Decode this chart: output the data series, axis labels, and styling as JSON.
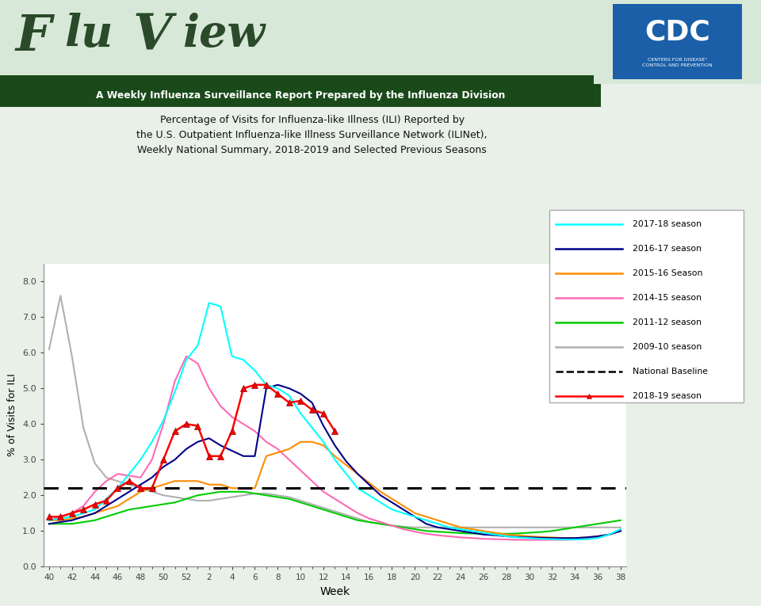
{
  "title_line1": "Percentage of Visits for Influenza-like Illness (ILI) Reported by",
  "title_line2": "the U.S. Outpatient Influenza-like Illness Surveillance Network (ILINet),",
  "title_line3": "Weekly National Summary, 2018-2019 and Selected Previous Seasons",
  "header_main": "FluView",
  "header_sub": "A Weekly Influenza Surveillance Report Prepared by the Influenza Division",
  "xlabel": "Week",
  "ylabel": "% of Visits for ILI",
  "ylim": [
    0.0,
    8.5
  ],
  "yticks": [
    0.0,
    1.0,
    2.0,
    3.0,
    4.0,
    5.0,
    6.0,
    7.0,
    8.0
  ],
  "national_baseline": 2.2,
  "week_labels": [
    40,
    42,
    44,
    46,
    48,
    50,
    52,
    2,
    4,
    6,
    8,
    10,
    12,
    14,
    16,
    18,
    20,
    22,
    24,
    26,
    28,
    30,
    32,
    34,
    36,
    38
  ],
  "season_2017_18": {
    "label": "2017-18 season",
    "color": "#00ffff",
    "x": [
      40,
      41,
      42,
      43,
      44,
      45,
      46,
      47,
      48,
      49,
      50,
      51,
      52,
      1,
      2,
      3,
      4,
      5,
      6,
      7,
      8,
      9,
      10,
      11,
      12,
      13,
      14,
      15,
      16,
      17,
      18,
      19,
      20,
      21,
      22,
      23,
      24,
      25,
      26,
      27,
      28,
      29,
      30,
      31,
      32,
      33,
      34,
      35,
      36,
      37,
      38
    ],
    "y": [
      1.3,
      1.35,
      1.4,
      1.5,
      1.6,
      1.9,
      2.2,
      2.6,
      3.0,
      3.5,
      4.1,
      4.9,
      5.8,
      6.2,
      7.4,
      7.3,
      5.9,
      5.8,
      5.5,
      5.1,
      5.0,
      4.8,
      4.3,
      3.9,
      3.5,
      3.0,
      2.6,
      2.2,
      2.0,
      1.8,
      1.6,
      1.5,
      1.4,
      1.3,
      1.2,
      1.1,
      1.05,
      1.0,
      0.95,
      0.9,
      0.85,
      0.82,
      0.8,
      0.78,
      0.77,
      0.76,
      0.76,
      0.77,
      0.8,
      0.9,
      1.05
    ]
  },
  "season_2016_17": {
    "label": "2016-17 season",
    "color": "#00008b",
    "x": [
      40,
      41,
      42,
      43,
      44,
      45,
      46,
      47,
      48,
      49,
      50,
      51,
      52,
      1,
      2,
      3,
      4,
      5,
      6,
      7,
      8,
      9,
      10,
      11,
      12,
      13,
      14,
      15,
      16,
      17,
      18,
      19,
      20,
      21,
      22,
      23,
      24,
      25,
      26,
      27,
      28,
      29,
      30,
      31,
      32,
      33,
      34,
      35,
      36,
      37,
      38
    ],
    "y": [
      1.2,
      1.25,
      1.3,
      1.4,
      1.5,
      1.7,
      1.9,
      2.1,
      2.3,
      2.5,
      2.8,
      3.0,
      3.3,
      3.5,
      3.6,
      3.4,
      3.25,
      3.1,
      3.1,
      5.0,
      5.1,
      5.0,
      4.85,
      4.6,
      3.95,
      3.4,
      2.95,
      2.6,
      2.3,
      2.0,
      1.8,
      1.6,
      1.4,
      1.2,
      1.1,
      1.05,
      1.0,
      0.95,
      0.9,
      0.88,
      0.85,
      0.83,
      0.82,
      0.81,
      0.8,
      0.8,
      0.8,
      0.82,
      0.85,
      0.9,
      1.0
    ]
  },
  "season_2015_16": {
    "label": "2015-16 Season",
    "color": "#ff8c00",
    "x": [
      40,
      41,
      42,
      43,
      44,
      45,
      46,
      47,
      48,
      49,
      50,
      51,
      52,
      1,
      2,
      3,
      4,
      5,
      6,
      7,
      8,
      9,
      10,
      11,
      12,
      13,
      14,
      15,
      16,
      17,
      18,
      19,
      20,
      21,
      22,
      23,
      24,
      25,
      26,
      27,
      28,
      29,
      30,
      31,
      32,
      33,
      34,
      35,
      36,
      37,
      38
    ],
    "y": [
      1.3,
      1.3,
      1.35,
      1.4,
      1.5,
      1.6,
      1.7,
      1.9,
      2.1,
      2.2,
      2.3,
      2.4,
      2.4,
      2.4,
      2.3,
      2.3,
      2.2,
      2.2,
      2.2,
      3.1,
      3.2,
      3.3,
      3.5,
      3.5,
      3.4,
      3.1,
      2.85,
      2.6,
      2.35,
      2.1,
      1.9,
      1.7,
      1.5,
      1.4,
      1.3,
      1.2,
      1.1,
      1.05,
      1.0,
      0.95,
      0.9,
      0.88,
      0.85,
      0.83,
      0.82,
      0.8,
      0.8,
      0.82,
      0.85,
      0.9,
      1.0
    ]
  },
  "season_2014_15": {
    "label": "2014-15 season",
    "color": "#ff69b4",
    "x": [
      40,
      41,
      42,
      43,
      44,
      45,
      46,
      47,
      48,
      49,
      50,
      51,
      52,
      1,
      2,
      3,
      4,
      5,
      6,
      7,
      8,
      9,
      10,
      11,
      12,
      13,
      14,
      15,
      16,
      17,
      18,
      19,
      20,
      21,
      22,
      23,
      24,
      25,
      26,
      27,
      28,
      29,
      30,
      31,
      32,
      33,
      34,
      35,
      36,
      37,
      38
    ],
    "y": [
      1.3,
      1.4,
      1.5,
      1.7,
      2.1,
      2.4,
      2.6,
      2.55,
      2.5,
      3.0,
      4.0,
      5.2,
      5.9,
      5.7,
      5.0,
      4.5,
      4.2,
      4.0,
      3.8,
      3.5,
      3.3,
      3.0,
      2.7,
      2.4,
      2.1,
      1.9,
      1.7,
      1.5,
      1.35,
      1.25,
      1.15,
      1.05,
      0.98,
      0.92,
      0.88,
      0.85,
      0.82,
      0.8,
      0.78,
      0.77,
      0.76,
      0.75,
      0.75,
      0.75,
      0.75,
      0.75,
      0.76,
      0.78,
      0.82,
      0.9,
      1.0
    ]
  },
  "season_2011_12": {
    "label": "2011-12 season",
    "color": "#00cc00",
    "x": [
      40,
      41,
      42,
      43,
      44,
      45,
      46,
      47,
      48,
      49,
      50,
      51,
      52,
      1,
      2,
      3,
      4,
      5,
      6,
      7,
      8,
      9,
      10,
      11,
      12,
      13,
      14,
      15,
      16,
      17,
      18,
      19,
      20,
      21,
      22,
      23,
      24,
      25,
      26,
      27,
      28,
      29,
      30,
      31,
      32,
      33,
      34,
      35,
      36,
      37,
      38
    ],
    "y": [
      1.2,
      1.2,
      1.2,
      1.25,
      1.3,
      1.4,
      1.5,
      1.6,
      1.65,
      1.7,
      1.75,
      1.8,
      1.9,
      2.0,
      2.05,
      2.1,
      2.1,
      2.1,
      2.05,
      2.0,
      1.95,
      1.9,
      1.8,
      1.7,
      1.6,
      1.5,
      1.4,
      1.3,
      1.25,
      1.2,
      1.15,
      1.1,
      1.05,
      1.0,
      0.98,
      0.96,
      0.94,
      0.93,
      0.92,
      0.92,
      0.92,
      0.93,
      0.95,
      0.97,
      1.0,
      1.05,
      1.1,
      1.15,
      1.2,
      1.25,
      1.3
    ]
  },
  "season_2009_10": {
    "label": "2009-10 season",
    "color": "#b0b0b0",
    "x": [
      40,
      41,
      42,
      43,
      44,
      45,
      46,
      47,
      48,
      49,
      50,
      51,
      52,
      1,
      2,
      3,
      4,
      5,
      6,
      7,
      8,
      9,
      10,
      11,
      12,
      13,
      14,
      15,
      16,
      17,
      18,
      19,
      20,
      21,
      22,
      23,
      24,
      25,
      26,
      27,
      28,
      29,
      30,
      31,
      32,
      33,
      34,
      35,
      36,
      37,
      38
    ],
    "y": [
      6.1,
      7.6,
      5.9,
      3.9,
      2.9,
      2.5,
      2.4,
      2.3,
      2.2,
      2.1,
      2.0,
      1.95,
      1.9,
      1.85,
      1.85,
      1.9,
      1.95,
      2.0,
      2.05,
      2.05,
      2.0,
      1.95,
      1.85,
      1.75,
      1.65,
      1.55,
      1.45,
      1.35,
      1.25,
      1.2,
      1.15,
      1.12,
      1.1,
      1.1,
      1.1,
      1.1,
      1.1,
      1.1,
      1.1,
      1.1,
      1.1,
      1.1,
      1.1,
      1.1,
      1.1,
      1.1,
      1.1,
      1.1,
      1.1,
      1.1,
      1.1
    ]
  },
  "season_2018_19": {
    "label": "2018-19 season",
    "color": "red",
    "x": [
      40,
      41,
      42,
      43,
      44,
      45,
      46,
      47,
      48,
      49,
      50,
      51,
      52,
      1,
      2,
      3,
      4,
      5,
      6,
      7,
      8,
      9,
      10,
      11,
      12,
      13
    ],
    "y": [
      1.4,
      1.4,
      1.5,
      1.6,
      1.75,
      1.85,
      2.2,
      2.4,
      2.2,
      2.2,
      3.0,
      3.8,
      4.0,
      3.95,
      3.1,
      3.1,
      3.8,
      5.0,
      5.1,
      5.1,
      4.85,
      4.6,
      4.65,
      4.4,
      4.3,
      3.8
    ]
  }
}
